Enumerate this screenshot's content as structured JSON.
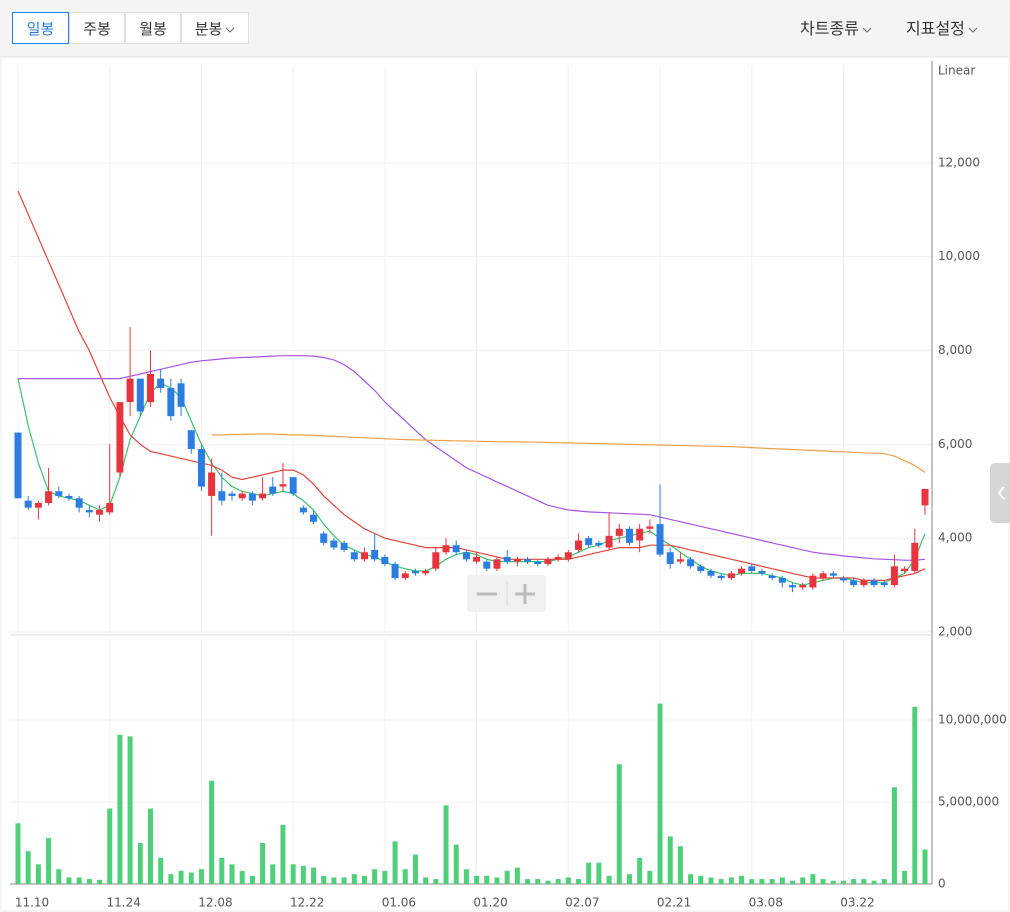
{
  "toolbar": {
    "periods": [
      "일봉",
      "주봉",
      "월봉",
      "분봉"
    ],
    "selected": 0,
    "menus": [
      "차트종류",
      "지표설정"
    ]
  },
  "chart_data": {
    "type": "candlestick",
    "scale_label": "Linear",
    "categories": [
      "11.10",
      null,
      null,
      null,
      null,
      null,
      null,
      null,
      null,
      "11.24",
      null,
      null,
      null,
      null,
      null,
      null,
      null,
      null,
      "12.08",
      null,
      null,
      null,
      null,
      null,
      null,
      null,
      null,
      "12.22",
      null,
      null,
      null,
      null,
      null,
      null,
      null,
      null,
      "01.06",
      null,
      null,
      null,
      null,
      null,
      null,
      null,
      null,
      "01.20",
      null,
      null,
      null,
      null,
      null,
      null,
      null,
      null,
      "02.07",
      null,
      null,
      null,
      null,
      null,
      null,
      null,
      null,
      "02.21",
      null,
      null,
      null,
      null,
      null,
      null,
      null,
      null,
      "03.08",
      null,
      null,
      null,
      null,
      null,
      null,
      null,
      null,
      "03.22",
      null,
      null,
      null,
      null,
      null,
      null,
      null,
      null
    ],
    "up_color": "#e8343f",
    "down_color": "#2b7de1",
    "open": [
      6250,
      4800,
      4650,
      4750,
      5000,
      4900,
      4850,
      4600,
      4500,
      4550,
      5400,
      6900,
      7400,
      6900,
      7400,
      7200,
      7300,
      6300,
      5900,
      4900,
      5000,
      4950,
      4850,
      4950,
      4850,
      5100,
      5100,
      5300,
      4650,
      4500,
      4100,
      3950,
      3900,
      3700,
      3550,
      3750,
      3600,
      3450,
      3150,
      3300,
      3250,
      3350,
      3700,
      3850,
      3700,
      3500,
      3500,
      3350,
      3600,
      3500,
      3550,
      3500,
      3450,
      3550,
      3550,
      3750,
      4000,
      3900,
      3800,
      4050,
      4200,
      3950,
      4200,
      4300,
      3700,
      3500,
      3550,
      3400,
      3300,
      3200,
      3150,
      3250,
      3400,
      3300,
      3200,
      3150,
      3000,
      2950,
      2950,
      3150,
      3250,
      3150,
      3100,
      3000,
      3100,
      3050,
      3000,
      3300,
      3300,
      4700
    ],
    "high": [
      6250,
      4900,
      4800,
      5500,
      5100,
      4950,
      4900,
      4700,
      4700,
      6000,
      6900,
      8500,
      7400,
      8000,
      7600,
      7400,
      7400,
      6300,
      6000,
      5700,
      5400,
      5000,
      5000,
      5000,
      5300,
      5300,
      5600,
      5300,
      4700,
      4600,
      4150,
      4000,
      3950,
      3750,
      3800,
      4100,
      3650,
      3500,
      3300,
      3350,
      3350,
      3800,
      4000,
      3950,
      3750,
      3700,
      3550,
      3600,
      3750,
      3600,
      3600,
      3550,
      3600,
      3650,
      3750,
      4100,
      4050,
      3950,
      4550,
      4300,
      4250,
      4300,
      4400,
      5150,
      3800,
      3700,
      3600,
      3450,
      3350,
      3250,
      3300,
      3400,
      3450,
      3350,
      3250,
      3200,
      3050,
      3050,
      3250,
      3300,
      3300,
      3200,
      3150,
      3150,
      3150,
      3100,
      3650,
      3400,
      4200,
      5050
    ],
    "low": [
      4850,
      4600,
      4400,
      4700,
      4850,
      4800,
      4550,
      4450,
      4350,
      4500,
      5300,
      6600,
      6600,
      6800,
      7100,
      6500,
      6600,
      5800,
      5000,
      4050,
      4700,
      4800,
      4800,
      4700,
      4800,
      4900,
      5000,
      4900,
      4500,
      4300,
      3850,
      3750,
      3700,
      3500,
      3500,
      3500,
      3400,
      3100,
      3100,
      3200,
      3200,
      3300,
      3650,
      3650,
      3500,
      3450,
      3300,
      3300,
      3450,
      3400,
      3450,
      3400,
      3400,
      3500,
      3500,
      3700,
      3800,
      3800,
      3750,
      3900,
      3850,
      3700,
      4100,
      3600,
      3350,
      3450,
      3350,
      3250,
      3150,
      3100,
      3100,
      3200,
      3250,
      3200,
      3100,
      2950,
      2850,
      2900,
      2900,
      3100,
      3150,
      3050,
      2950,
      2950,
      2950,
      2950,
      2950,
      3250,
      3250,
      4500
    ],
    "close": [
      4850,
      4650,
      4750,
      5000,
      4900,
      4850,
      4650,
      4550,
      4600,
      4750,
      6900,
      7400,
      6700,
      7500,
      7200,
      6600,
      6800,
      5900,
      5100,
      5400,
      4800,
      4900,
      4950,
      4800,
      4950,
      4950,
      5150,
      4950,
      4550,
      4350,
      3900,
      3800,
      3750,
      3550,
      3700,
      3550,
      3450,
      3150,
      3250,
      3250,
      3300,
      3700,
      3850,
      3700,
      3550,
      3600,
      3350,
      3550,
      3500,
      3550,
      3500,
      3450,
      3550,
      3600,
      3700,
      3950,
      3850,
      3850,
      4050,
      4200,
      3900,
      4200,
      4250,
      3650,
      3450,
      3550,
      3400,
      3300,
      3200,
      3150,
      3250,
      3350,
      3300,
      3250,
      3150,
      3050,
      2950,
      3000,
      3200,
      3250,
      3200,
      3100,
      3000,
      3100,
      3000,
      3000,
      3400,
      3350,
      3900,
      5050
    ],
    "lines": [
      {
        "color": "#3cc36b",
        "values": [
          7400,
          6400,
          5600,
          5000,
          4900,
          4850,
          4800,
          4700,
          4600,
          4700,
          5300,
          6100,
          6600,
          7100,
          7300,
          7200,
          7000,
          6500,
          6000,
          5600,
          5300,
          5100,
          5000,
          4950,
          4900,
          4950,
          5000,
          4950,
          4800,
          4600,
          4300,
          4050,
          3850,
          3750,
          3650,
          3600,
          3500,
          3400,
          3350,
          3300,
          3300,
          3400,
          3550,
          3650,
          3700,
          3650,
          3550,
          3500,
          3500,
          3500,
          3500,
          3500,
          3500,
          3550,
          3600,
          3700,
          3800,
          3850,
          3950,
          4000,
          4050,
          4100,
          4150,
          4000,
          3850,
          3700,
          3550,
          3400,
          3300,
          3250,
          3200,
          3250,
          3250,
          3250,
          3200,
          3150,
          3050,
          3000,
          3050,
          3100,
          3150,
          3150,
          3100,
          3050,
          3050,
          3050,
          3150,
          3250,
          3550,
          4100
        ]
      },
      {
        "color": "#e0453a",
        "values": [
          11400,
          10900,
          10400,
          9900,
          9400,
          8900,
          8400,
          8000,
          7500,
          7000,
          6600,
          6200,
          6000,
          5850,
          5800,
          5750,
          5700,
          5650,
          5600,
          5550,
          5450,
          5300,
          5250,
          5300,
          5350,
          5400,
          5450,
          5450,
          5350,
          5150,
          4900,
          4700,
          4500,
          4350,
          4200,
          4100,
          4000,
          3950,
          3900,
          3850,
          3800,
          3800,
          3800,
          3800,
          3750,
          3700,
          3650,
          3600,
          3550,
          3550,
          3550,
          3550,
          3550,
          3550,
          3550,
          3600,
          3650,
          3700,
          3750,
          3800,
          3800,
          3800,
          3850,
          3850,
          3850,
          3800,
          3750,
          3700,
          3650,
          3600,
          3550,
          3500,
          3450,
          3400,
          3350,
          3300,
          3250,
          3200,
          3150,
          3150,
          3150,
          3150,
          3150,
          3100,
          3100,
          3100,
          3150,
          3200,
          3250,
          3350
        ]
      },
      {
        "color": "#a855e6",
        "values": [
          7400,
          7400,
          7400,
          7400,
          7400,
          7400,
          7400,
          7400,
          7400,
          7400,
          7400,
          7450,
          7500,
          7550,
          7600,
          7650,
          7700,
          7750,
          7780,
          7800,
          7820,
          7840,
          7850,
          7860,
          7870,
          7880,
          7890,
          7890,
          7890,
          7880,
          7850,
          7800,
          7700,
          7550,
          7350,
          7150,
          6900,
          6700,
          6500,
          6300,
          6100,
          5950,
          5800,
          5650,
          5500,
          5400,
          5300,
          5200,
          5100,
          5000,
          4900,
          4800,
          4700,
          4650,
          4600,
          4580,
          4560,
          4550,
          4540,
          4530,
          4520,
          4510,
          4500,
          4450,
          4400,
          4350,
          4300,
          4250,
          4200,
          4150,
          4100,
          4050,
          4000,
          3950,
          3900,
          3850,
          3800,
          3750,
          3700,
          3670,
          3650,
          3620,
          3600,
          3580,
          3560,
          3550,
          3540,
          3530,
          3530,
          3550
        ]
      },
      {
        "color": "#f0a04a",
        "values": [
          null,
          null,
          null,
          null,
          null,
          null,
          null,
          null,
          null,
          null,
          null,
          null,
          null,
          null,
          null,
          null,
          null,
          null,
          null,
          6200,
          6200,
          6210,
          6210,
          6220,
          6220,
          6220,
          6210,
          6200,
          6200,
          6190,
          6180,
          6170,
          6160,
          6150,
          6140,
          6130,
          6120,
          6110,
          6100,
          6095,
          6090,
          6085,
          6080,
          6075,
          6070,
          6065,
          6060,
          6058,
          6055,
          6052,
          6050,
          6045,
          6040,
          6035,
          6030,
          6025,
          6020,
          6015,
          6010,
          6005,
          6000,
          5995,
          5990,
          5985,
          5980,
          5975,
          5970,
          5965,
          5960,
          5955,
          5950,
          5940,
          5930,
          5920,
          5910,
          5900,
          5890,
          5880,
          5870,
          5860,
          5850,
          5840,
          5830,
          5820,
          5810,
          5800,
          5750,
          5650,
          5550,
          5400
        ]
      }
    ],
    "ylim": [
      2000,
      14000
    ],
    "yticks": [
      {
        "value": 2000,
        "label": "2,000"
      },
      {
        "value": 4000,
        "label": "4,000"
      },
      {
        "value": 6000,
        "label": "6,000"
      },
      {
        "value": 8000,
        "label": "8,000"
      },
      {
        "value": 10000,
        "label": "10,000"
      },
      {
        "value": 12000,
        "label": "12,000"
      }
    ],
    "grid": true,
    "volume": {
      "color": "#4fcf7a",
      "values": [
        3700000,
        2000000,
        1200000,
        2800000,
        900000,
        400000,
        400000,
        300000,
        250000,
        4600000,
        9100000,
        9000000,
        2500000,
        4600000,
        1600000,
        600000,
        800000,
        700000,
        900000,
        6300000,
        1600000,
        1200000,
        800000,
        500000,
        2500000,
        1200000,
        3600000,
        1200000,
        1100000,
        1000000,
        500000,
        400000,
        400000,
        600000,
        500000,
        900000,
        800000,
        2600000,
        900000,
        1800000,
        400000,
        300000,
        4800000,
        2400000,
        900000,
        500000,
        500000,
        400000,
        800000,
        1000000,
        300000,
        300000,
        200000,
        300000,
        400000,
        300000,
        1300000,
        1300000,
        500000,
        7300000,
        600000,
        1600000,
        800000,
        11000000,
        2900000,
        2300000,
        600000,
        500000,
        400000,
        300000,
        400000,
        500000,
        300000,
        300000,
        300000,
        400000,
        200000,
        400000,
        600000,
        300000,
        200000,
        200000,
        300000,
        300000,
        200000,
        300000,
        5900000,
        800000,
        10800000,
        2100000
      ],
      "ylim": [
        0,
        15000000
      ],
      "yticks": [
        0,
        {
          "value": 5000000,
          "label": "5,000,000"
        },
        {
          "value": 10000000,
          "label": "10,000,000"
        }
      ]
    }
  }
}
